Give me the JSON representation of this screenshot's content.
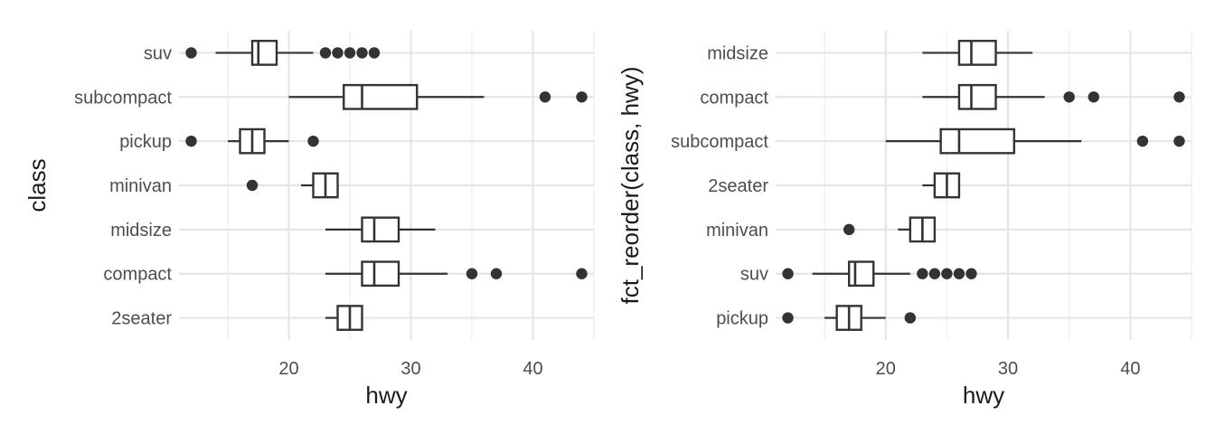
{
  "chart_data": [
    {
      "type": "boxplot",
      "orientation": "horizontal",
      "xlabel": "hwy",
      "ylabel": "class",
      "xlim": [
        11,
        45
      ],
      "x_ticks": [
        20,
        30,
        40
      ],
      "grid": true,
      "categories": [
        "2seater",
        "compact",
        "midsize",
        "minivan",
        "pickup",
        "subcompact",
        "suv"
      ],
      "boxes": [
        {
          "category": "2seater",
          "whisker_low": 23,
          "q1": 24,
          "median": 25,
          "q3": 26,
          "whisker_high": 26,
          "outliers": []
        },
        {
          "category": "compact",
          "whisker_low": 23,
          "q1": 26,
          "median": 27,
          "q3": 29,
          "whisker_high": 33,
          "outliers": [
            35,
            37,
            44
          ]
        },
        {
          "category": "midsize",
          "whisker_low": 23,
          "q1": 26,
          "median": 27,
          "q3": 29,
          "whisker_high": 32,
          "outliers": []
        },
        {
          "category": "minivan",
          "whisker_low": 21,
          "q1": 22,
          "median": 23,
          "q3": 24,
          "whisker_high": 24,
          "outliers": [
            17
          ]
        },
        {
          "category": "pickup",
          "whisker_low": 15,
          "q1": 16,
          "median": 17,
          "q3": 18,
          "whisker_high": 20,
          "outliers": [
            12,
            22
          ]
        },
        {
          "category": "subcompact",
          "whisker_low": 20,
          "q1": 24.5,
          "median": 26,
          "q3": 30.5,
          "whisker_high": 36,
          "outliers": [
            41,
            44
          ]
        },
        {
          "category": "suv",
          "whisker_low": 14,
          "q1": 17,
          "median": 17.5,
          "q3": 19,
          "whisker_high": 22,
          "outliers": [
            12,
            23,
            24,
            25,
            26,
            27
          ]
        }
      ]
    },
    {
      "type": "boxplot",
      "orientation": "horizontal",
      "xlabel": "hwy",
      "ylabel": "fct_reorder(class, hwy)",
      "xlim": [
        11,
        45
      ],
      "x_ticks": [
        20,
        30,
        40
      ],
      "grid": true,
      "categories": [
        "pickup",
        "suv",
        "minivan",
        "2seater",
        "subcompact",
        "compact",
        "midsize"
      ],
      "boxes": [
        {
          "category": "pickup",
          "whisker_low": 15,
          "q1": 16,
          "median": 17,
          "q3": 18,
          "whisker_high": 20,
          "outliers": [
            12,
            22
          ]
        },
        {
          "category": "suv",
          "whisker_low": 14,
          "q1": 17,
          "median": 17.5,
          "q3": 19,
          "whisker_high": 22,
          "outliers": [
            12,
            23,
            24,
            25,
            26,
            27
          ]
        },
        {
          "category": "minivan",
          "whisker_low": 21,
          "q1": 22,
          "median": 23,
          "q3": 24,
          "whisker_high": 24,
          "outliers": [
            17
          ]
        },
        {
          "category": "2seater",
          "whisker_low": 23,
          "q1": 24,
          "median": 25,
          "q3": 26,
          "whisker_high": 26,
          "outliers": []
        },
        {
          "category": "subcompact",
          "whisker_low": 20,
          "q1": 24.5,
          "median": 26,
          "q3": 30.5,
          "whisker_high": 36,
          "outliers": [
            41,
            44
          ]
        },
        {
          "category": "compact",
          "whisker_low": 23,
          "q1": 26,
          "median": 27,
          "q3": 29,
          "whisker_high": 33,
          "outliers": [
            35,
            37,
            44
          ]
        },
        {
          "category": "midsize",
          "whisker_low": 23,
          "q1": 26,
          "median": 27,
          "q3": 29,
          "whisker_high": 32,
          "outliers": []
        }
      ]
    }
  ]
}
